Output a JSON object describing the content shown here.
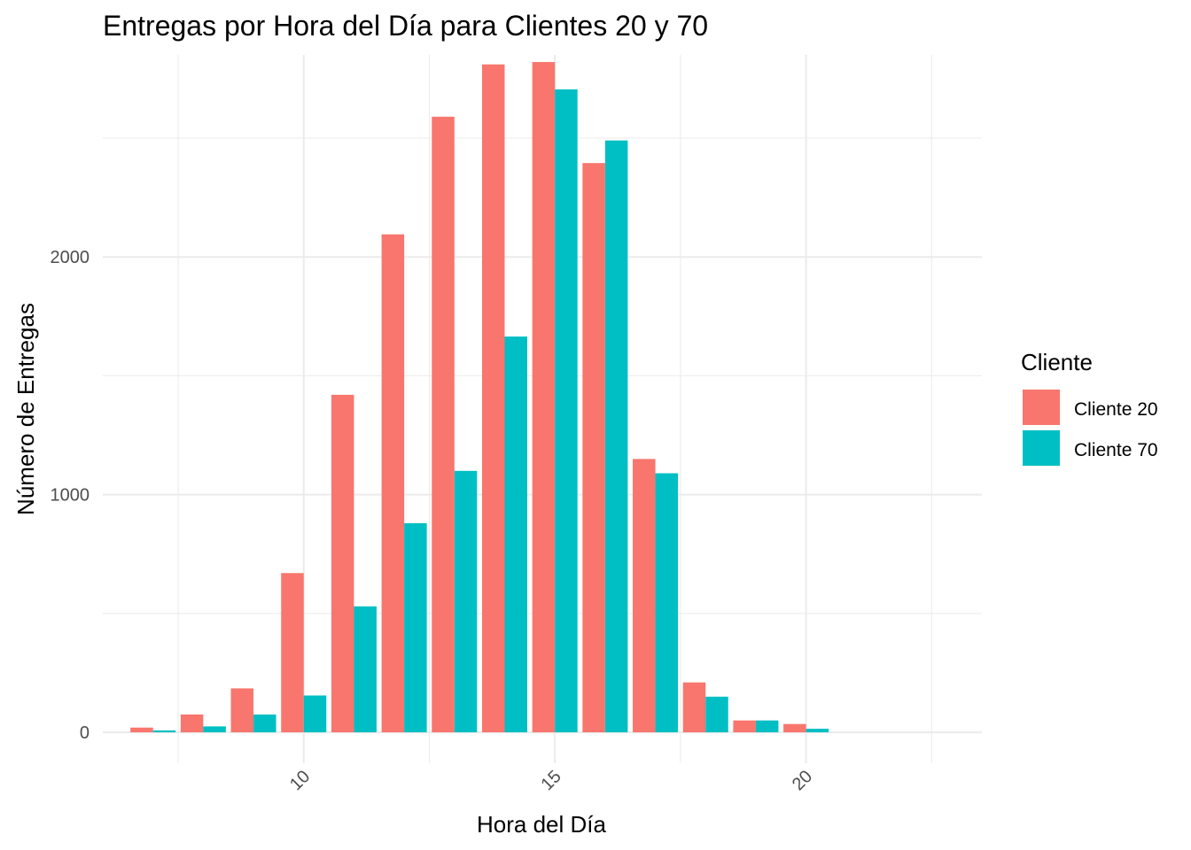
{
  "chart_data": {
    "type": "bar",
    "title": "Entregas por Hora del Día para Clientes 20 y 70",
    "xlabel": "Hora del Día",
    "ylabel": "Número de Entregas",
    "xlim": [
      6,
      23.5
    ],
    "ylim": [
      -130,
      2850
    ],
    "x_ticks": [
      10,
      15,
      20
    ],
    "x_tick_labels": [
      "10",
      "15",
      "20"
    ],
    "y_ticks": [
      0,
      1000,
      2000
    ],
    "y_tick_labels": [
      "0",
      "1000",
      "2000"
    ],
    "grid": true,
    "legend": {
      "title": "Cliente",
      "position": "right"
    },
    "x": [
      7,
      8,
      9,
      10,
      11,
      12,
      13,
      14,
      15,
      16,
      17,
      18,
      19,
      20
    ],
    "series": [
      {
        "name": "Cliente 20",
        "color": "#F8766D",
        "values": [
          20,
          75,
          185,
          670,
          1420,
          2095,
          2590,
          2810,
          2820,
          2395,
          1150,
          210,
          50,
          35
        ]
      },
      {
        "name": "Cliente 70",
        "color": "#00BFC4",
        "values": [
          8,
          25,
          75,
          155,
          530,
          880,
          1100,
          1665,
          2705,
          2490,
          1090,
          150,
          50,
          15
        ]
      }
    ]
  }
}
